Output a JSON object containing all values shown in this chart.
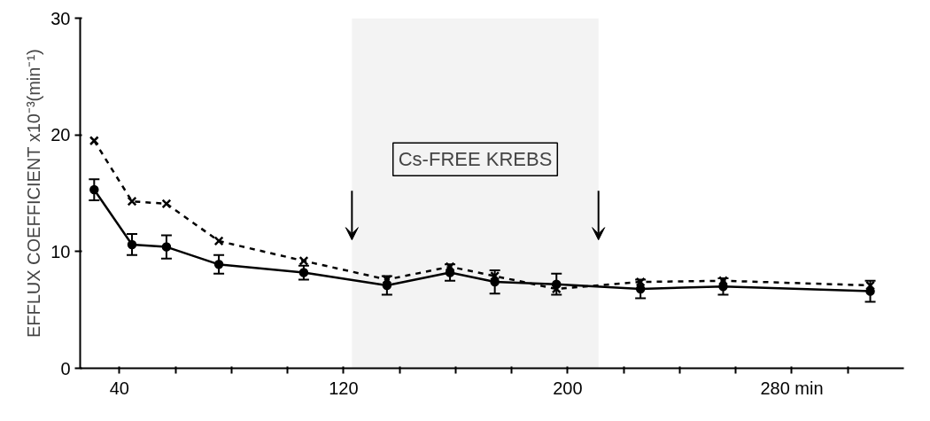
{
  "chart_data": {
    "type": "line",
    "ylabel": "EFFLUX COEFFICIENT x10⁻³(min⁻¹)",
    "x": [
      31,
      44.5,
      56.8,
      75.5,
      105.8,
      135.5,
      158,
      174,
      196,
      226,
      255.5,
      308
    ],
    "series": [
      {
        "color": "#000000",
        "marker": "circle",
        "line_style": "solid",
        "values": [
          15.3,
          10.6,
          10.4,
          8.9,
          8.2,
          7.1,
          8.2,
          7.4,
          7.2,
          6.8,
          7.0,
          6.6
        ],
        "errors": [
          0.9,
          0.9,
          1.0,
          0.8,
          0.6,
          0.8,
          0.7,
          1.0,
          0.9,
          0.8,
          0.7,
          0.9
        ]
      },
      {
        "color": "#000000",
        "marker": "cross",
        "line_style": "dashed",
        "values": [
          19.5,
          14.3,
          14.1,
          10.9,
          9.2,
          7.6,
          8.7,
          7.9,
          6.8,
          7.4,
          7.5,
          7.1
        ]
      }
    ],
    "bands": [
      {
        "axis": "x",
        "from": 123,
        "to": 211,
        "label": "Cs-FREE KREBS",
        "color": "#f3f3f3"
      }
    ],
    "xlim": [
      26,
      320
    ],
    "xticks": [
      40,
      {
        "value": 60,
        "label": null
      },
      {
        "value": 80,
        "label": null
      },
      {
        "value": 100,
        "label": null
      },
      120,
      {
        "value": 140,
        "label": null
      },
      {
        "value": 160,
        "label": null
      },
      {
        "value": 180,
        "label": null
      },
      200,
      {
        "value": 220,
        "label": null
      },
      {
        "value": 240,
        "label": null
      },
      {
        "value": 260,
        "label": null
      },
      {
        "value": 280,
        "label": "280 min"
      },
      {
        "value": 300,
        "label": null
      }
    ],
    "ylim": [
      0,
      30
    ],
    "yticks": [
      0,
      10,
      20,
      30
    ],
    "grid": false
  }
}
